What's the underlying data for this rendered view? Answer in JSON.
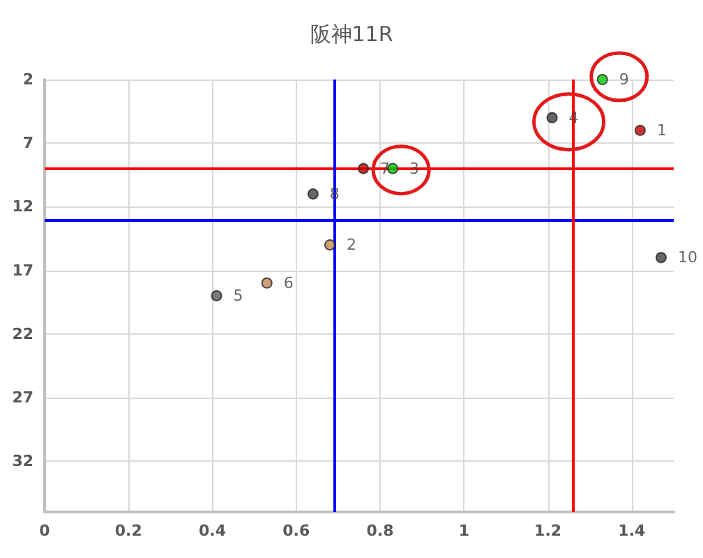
{
  "chart_data": {
    "type": "scatter",
    "title": "阪神11R",
    "xlim": [
      0,
      1.5
    ],
    "xticks": [
      0,
      0.2,
      0.4,
      0.6,
      0.8,
      1,
      1.2,
      1.4
    ],
    "ylim": [
      36,
      2
    ],
    "yticks": [
      2,
      7,
      12,
      17,
      22,
      27,
      32
    ],
    "grid": true,
    "legend": false,
    "marker": "circle",
    "series": [
      {
        "name": "1",
        "color": "#c00000",
        "x": [
          1.42
        ],
        "values": [
          6
        ]
      },
      {
        "name": "2",
        "color": "#c0874f",
        "x": [
          0.68
        ],
        "values": [
          15
        ]
      },
      {
        "name": "3",
        "color": "#00cc00",
        "x": [
          0.83
        ],
        "values": [
          9
        ]
      },
      {
        "name": "4",
        "color": "#404040",
        "x": [
          1.21
        ],
        "values": [
          5
        ]
      },
      {
        "name": "5",
        "color": "#595959",
        "x": [
          0.41
        ],
        "values": [
          19
        ]
      },
      {
        "name": "6",
        "color": "#c0874f",
        "x": [
          0.53
        ],
        "values": [
          18
        ]
      },
      {
        "name": "7",
        "color": "#c00000",
        "x": [
          0.76
        ],
        "values": [
          9
        ]
      },
      {
        "name": "8",
        "color": "#404040",
        "x": [
          0.64
        ],
        "values": [
          11
        ]
      },
      {
        "name": "9",
        "color": "#00cc00",
        "x": [
          1.33
        ],
        "values": [
          2
        ]
      },
      {
        "name": "10",
        "color": "#404040",
        "x": [
          1.47
        ],
        "values": [
          16
        ]
      }
    ],
    "ref_lines": [
      {
        "axis": "y",
        "value": 9,
        "color": "#ff0000",
        "line_style": "solid"
      },
      {
        "axis": "y",
        "value": 13,
        "color": "#0000ff",
        "line_style": "solid"
      },
      {
        "axis": "x",
        "value": 0.69,
        "color": "#0000ff",
        "line_style": "solid"
      },
      {
        "axis": "x",
        "value": 1.26,
        "color": "#ff0000",
        "line_style": "solid"
      }
    ]
  }
}
